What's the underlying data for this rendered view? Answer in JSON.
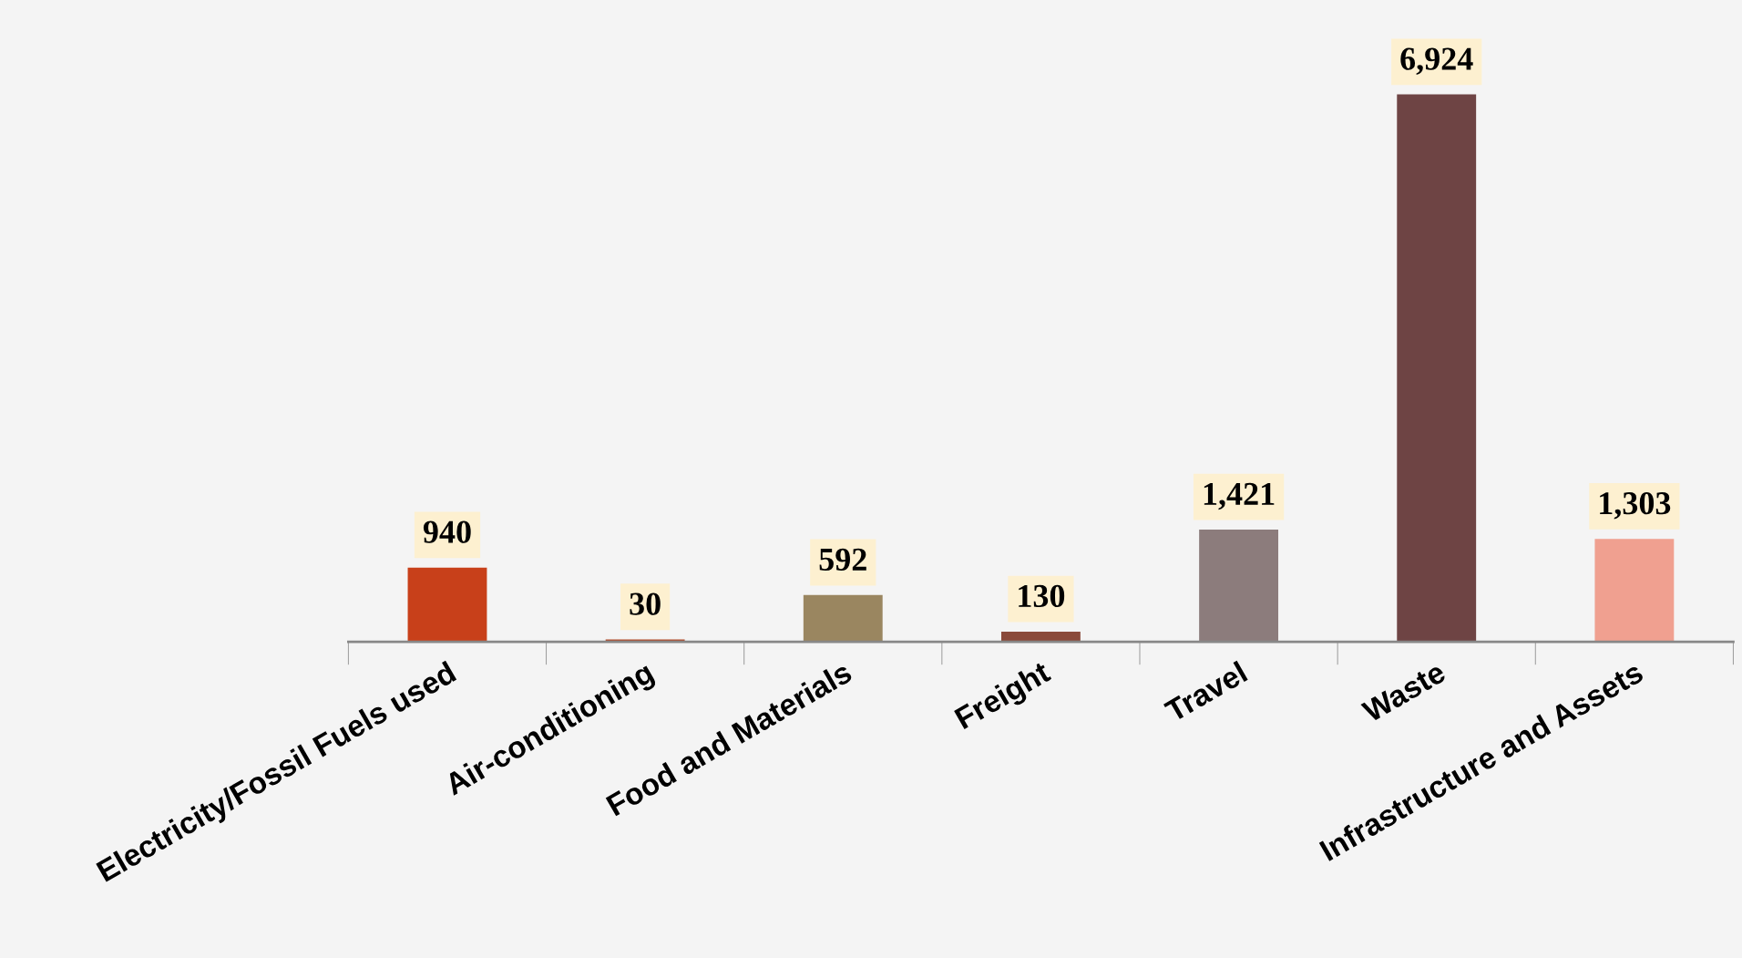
{
  "chart_data": {
    "type": "bar",
    "categories": [
      "Electricity/Fossil Fuels used",
      "Air-conditioning",
      "Food and Materials",
      "Freight",
      "Travel",
      "Waste",
      "Infrastructure and Assets"
    ],
    "values": [
      940,
      30,
      592,
      130,
      1421,
      6924,
      1303
    ],
    "colors": [
      "#c8401a",
      "#b04a2a",
      "#9a8660",
      "#8a4a3a",
      "#8c7c7c",
      "#6e4444",
      "#f0a090"
    ],
    "value_labels": [
      "940",
      "30",
      "592",
      "130",
      "1,421",
      "6,924",
      "1,303"
    ],
    "grid": false,
    "legend": false
  }
}
